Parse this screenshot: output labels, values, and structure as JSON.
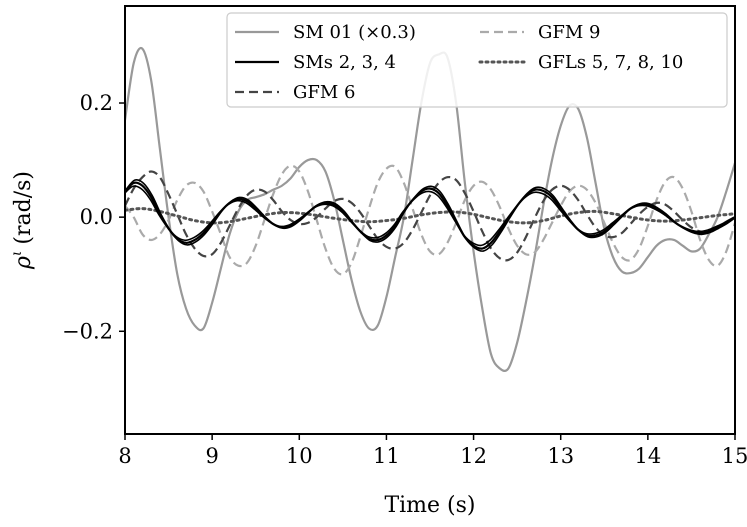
{
  "chart_data": {
    "type": "line",
    "xlabel": "Time (s)",
    "ylabel_symbol": "ρ",
    "ylabel_superscript": "ι",
    "ylabel_unit": "(rad/s)",
    "xlim": [
      8,
      15
    ],
    "ylim": [
      -0.38,
      0.37
    ],
    "xticks": [
      8,
      9,
      10,
      11,
      12,
      13,
      14,
      15
    ],
    "xtick_labels": [
      "8",
      "9",
      "10",
      "11",
      "12",
      "13",
      "14",
      "15"
    ],
    "yticks": [
      -0.2,
      0.0,
      0.2
    ],
    "ytick_labels": [
      "−0.2",
      "0.0",
      "0.2"
    ],
    "legend_position": "top-right",
    "series": [
      {
        "name": "SM 01 (×0.3)",
        "color": "#999999",
        "dash": "solid",
        "width": 2.2,
        "x": [
          8.0,
          8.1,
          8.2,
          8.3,
          8.4,
          8.5,
          8.6,
          8.7,
          8.8,
          8.9,
          9.0,
          9.1,
          9.2,
          9.3,
          9.4,
          9.5,
          9.6,
          9.7,
          9.8,
          9.9,
          10.0,
          10.1,
          10.2,
          10.3,
          10.4,
          10.5,
          10.6,
          10.7,
          10.8,
          10.9,
          11.0,
          11.1,
          11.2,
          11.3,
          11.4,
          11.5,
          11.6,
          11.7,
          11.8,
          11.9,
          12.0,
          12.1,
          12.2,
          12.3,
          12.4,
          12.5,
          12.6,
          12.7,
          12.8,
          12.9,
          13.0,
          13.1,
          13.2,
          13.3,
          13.4,
          13.5,
          13.6,
          13.7,
          13.8,
          13.9,
          14.0,
          14.1,
          14.2,
          14.3,
          14.4,
          14.5,
          14.6,
          14.7,
          14.8,
          14.9,
          15.0
        ],
        "values": [
          0.17,
          0.27,
          0.295,
          0.24,
          0.12,
          0.0,
          -0.1,
          -0.16,
          -0.19,
          -0.195,
          -0.15,
          -0.09,
          -0.03,
          0.01,
          0.03,
          0.035,
          0.04,
          0.048,
          0.055,
          0.068,
          0.088,
          0.1,
          0.1,
          0.08,
          0.03,
          -0.04,
          -0.11,
          -0.165,
          -0.195,
          -0.19,
          -0.14,
          -0.07,
          0.0,
          0.1,
          0.2,
          0.27,
          0.285,
          0.28,
          0.2,
          0.06,
          -0.06,
          -0.16,
          -0.24,
          -0.265,
          -0.265,
          -0.22,
          -0.15,
          -0.07,
          0.02,
          0.1,
          0.16,
          0.195,
          0.19,
          0.14,
          0.06,
          -0.02,
          -0.07,
          -0.095,
          -0.098,
          -0.09,
          -0.07,
          -0.05,
          -0.04,
          -0.04,
          -0.05,
          -0.06,
          -0.055,
          -0.03,
          0.0,
          0.045,
          0.095
        ]
      },
      {
        "name": "SMs 2, 3, 4",
        "color": "#000000",
        "dash": "solid",
        "width": 2.2,
        "x": [
          8.0,
          8.1,
          8.2,
          8.3,
          8.4,
          8.5,
          8.6,
          8.7,
          8.8,
          8.9,
          9.0,
          9.1,
          9.2,
          9.3,
          9.4,
          9.5,
          9.6,
          9.7,
          9.8,
          9.9,
          10.0,
          10.1,
          10.2,
          10.3,
          10.4,
          10.5,
          10.6,
          10.7,
          10.8,
          10.9,
          11.0,
          11.1,
          11.2,
          11.3,
          11.4,
          11.5,
          11.6,
          11.7,
          11.8,
          11.9,
          12.0,
          12.1,
          12.2,
          12.3,
          12.4,
          12.5,
          12.6,
          12.7,
          12.8,
          12.9,
          13.0,
          13.1,
          13.2,
          13.3,
          13.4,
          13.5,
          13.6,
          13.7,
          13.8,
          13.9,
          14.0,
          14.1,
          14.2,
          14.3,
          14.4,
          14.5,
          14.6,
          14.7,
          14.8,
          14.9,
          15.0
        ],
        "values": [
          0.045,
          0.06,
          0.055,
          0.035,
          0.005,
          -0.02,
          -0.038,
          -0.045,
          -0.04,
          -0.028,
          -0.01,
          0.01,
          0.025,
          0.032,
          0.028,
          0.015,
          0.0,
          -0.012,
          -0.018,
          -0.015,
          -0.005,
          0.008,
          0.02,
          0.025,
          0.022,
          0.01,
          -0.008,
          -0.025,
          -0.038,
          -0.04,
          -0.032,
          -0.015,
          0.01,
          0.03,
          0.045,
          0.05,
          0.042,
          0.02,
          -0.008,
          -0.035,
          -0.05,
          -0.055,
          -0.045,
          -0.025,
          -0.002,
          0.02,
          0.038,
          0.048,
          0.046,
          0.035,
          0.015,
          -0.005,
          -0.022,
          -0.032,
          -0.032,
          -0.025,
          -0.012,
          0.002,
          0.015,
          0.022,
          0.022,
          0.015,
          0.005,
          -0.008,
          -0.018,
          -0.025,
          -0.028,
          -0.025,
          -0.018,
          -0.01,
          0.0
        ]
      },
      {
        "name": "GFM 6",
        "color": "#444444",
        "dash": "9,5",
        "width": 2.2,
        "x": [
          8.0,
          8.1,
          8.2,
          8.3,
          8.4,
          8.5,
          8.6,
          8.7,
          8.8,
          8.9,
          9.0,
          9.1,
          9.2,
          9.3,
          9.4,
          9.5,
          9.6,
          9.7,
          9.8,
          9.9,
          10.0,
          10.1,
          10.2,
          10.3,
          10.4,
          10.5,
          10.6,
          10.7,
          10.8,
          10.9,
          11.0,
          11.1,
          11.2,
          11.3,
          11.4,
          11.5,
          11.6,
          11.7,
          11.8,
          11.9,
          12.0,
          12.1,
          12.2,
          12.3,
          12.4,
          12.5,
          12.6,
          12.7,
          12.8,
          12.9,
          13.0,
          13.1,
          13.2,
          13.3,
          13.4,
          13.5,
          13.6,
          13.7,
          13.8,
          13.9,
          14.0,
          14.1,
          14.2,
          14.3,
          14.4,
          14.5,
          14.6,
          14.7,
          14.8,
          14.9,
          15.0
        ],
        "values": [
          0.02,
          0.05,
          0.07,
          0.08,
          0.07,
          0.04,
          0.005,
          -0.03,
          -0.055,
          -0.068,
          -0.065,
          -0.045,
          -0.015,
          0.015,
          0.038,
          0.048,
          0.045,
          0.03,
          0.01,
          -0.005,
          -0.012,
          -0.01,
          0.0,
          0.015,
          0.028,
          0.032,
          0.025,
          0.008,
          -0.015,
          -0.038,
          -0.052,
          -0.055,
          -0.045,
          -0.022,
          0.008,
          0.038,
          0.06,
          0.07,
          0.065,
          0.042,
          0.01,
          -0.025,
          -0.055,
          -0.072,
          -0.075,
          -0.062,
          -0.035,
          -0.002,
          0.028,
          0.048,
          0.055,
          0.048,
          0.03,
          0.005,
          -0.018,
          -0.032,
          -0.035,
          -0.028,
          -0.012,
          0.005,
          0.018,
          0.025,
          0.022,
          0.01,
          -0.005,
          -0.018,
          -0.025,
          -0.025,
          -0.018,
          -0.008,
          0.0
        ]
      },
      {
        "name": "GFM 9",
        "color": "#aaaaaa",
        "dash": "9,5",
        "width": 2.2,
        "x": [
          8.0,
          8.1,
          8.2,
          8.3,
          8.4,
          8.5,
          8.6,
          8.7,
          8.8,
          8.9,
          9.0,
          9.1,
          9.2,
          9.3,
          9.4,
          9.5,
          9.6,
          9.7,
          9.8,
          9.9,
          10.0,
          10.1,
          10.2,
          10.3,
          10.4,
          10.5,
          10.6,
          10.7,
          10.8,
          10.9,
          11.0,
          11.1,
          11.2,
          11.3,
          11.4,
          11.5,
          11.6,
          11.7,
          11.8,
          11.9,
          12.0,
          12.1,
          12.2,
          12.3,
          12.4,
          12.5,
          12.6,
          12.7,
          12.8,
          12.9,
          13.0,
          13.1,
          13.2,
          13.3,
          13.4,
          13.5,
          13.6,
          13.7,
          13.8,
          13.9,
          14.0,
          14.1,
          14.2,
          14.3,
          14.4,
          14.5,
          14.6,
          14.7,
          14.8,
          14.9,
          15.0
        ],
        "values": [
          0.02,
          0.0,
          -0.03,
          -0.04,
          -0.03,
          -0.005,
          0.03,
          0.055,
          0.06,
          0.045,
          0.01,
          -0.03,
          -0.07,
          -0.085,
          -0.08,
          -0.05,
          -0.005,
          0.04,
          0.075,
          0.09,
          0.08,
          0.045,
          -0.005,
          -0.055,
          -0.09,
          -0.1,
          -0.08,
          -0.035,
          0.015,
          0.06,
          0.085,
          0.088,
          0.06,
          0.015,
          -0.03,
          -0.06,
          -0.065,
          -0.045,
          -0.01,
          0.03,
          0.055,
          0.062,
          0.048,
          0.018,
          -0.02,
          -0.05,
          -0.065,
          -0.062,
          -0.04,
          -0.01,
          0.02,
          0.045,
          0.055,
          0.048,
          0.025,
          -0.01,
          -0.045,
          -0.07,
          -0.075,
          -0.055,
          -0.015,
          0.03,
          0.062,
          0.07,
          0.05,
          0.01,
          -0.04,
          -0.075,
          -0.085,
          -0.06,
          -0.01
        ]
      },
      {
        "name": "GFLs 5, 7, 8, 10",
        "color": "#555555",
        "dash": "2,4",
        "width": 3,
        "x": [
          8.0,
          8.2,
          8.4,
          8.6,
          8.8,
          9.0,
          9.2,
          9.4,
          9.6,
          9.8,
          10.0,
          10.2,
          10.4,
          10.6,
          10.8,
          11.0,
          11.2,
          11.4,
          11.6,
          11.8,
          12.0,
          12.2,
          12.4,
          12.6,
          12.8,
          13.0,
          13.2,
          13.4,
          13.6,
          13.8,
          14.0,
          14.2,
          14.4,
          14.6,
          14.8,
          15.0
        ],
        "values": [
          0.012,
          0.015,
          0.01,
          0.002,
          -0.006,
          -0.01,
          -0.008,
          -0.002,
          0.004,
          0.008,
          0.007,
          0.003,
          -0.002,
          -0.006,
          -0.008,
          -0.006,
          -0.002,
          0.004,
          0.008,
          0.009,
          0.005,
          -0.002,
          -0.008,
          -0.01,
          -0.006,
          0.002,
          0.008,
          0.01,
          0.006,
          0.0,
          -0.005,
          -0.007,
          -0.005,
          -0.001,
          0.003,
          0.006
        ]
      }
    ]
  }
}
